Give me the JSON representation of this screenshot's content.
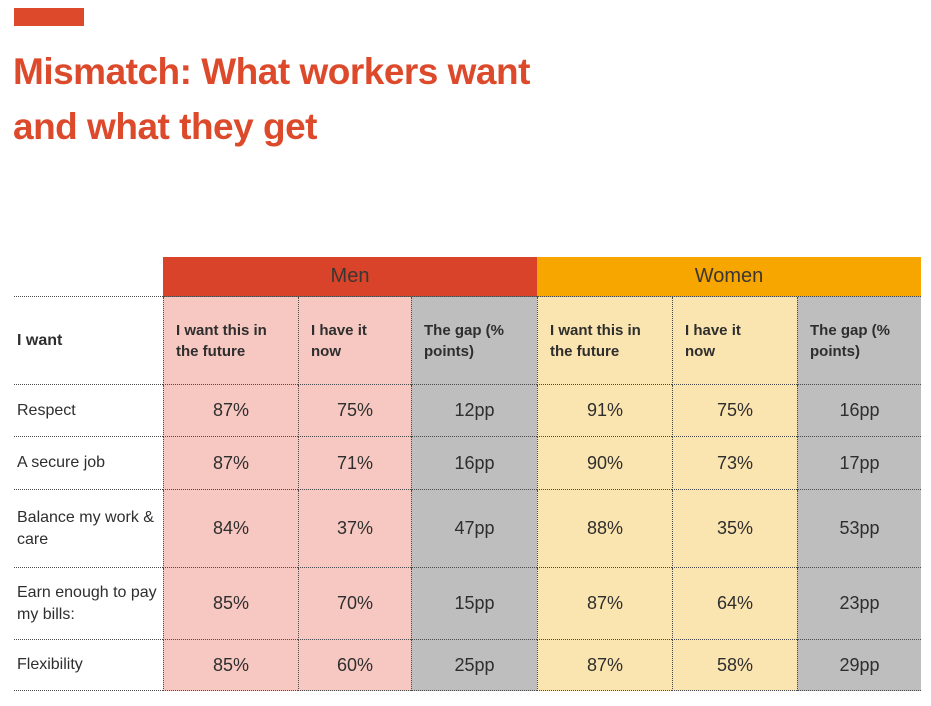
{
  "colors": {
    "accent_red": "#DC4A2B",
    "men_band": "#D8432A",
    "women_band": "#F7A600",
    "men_cell": "#F6C8C1",
    "women_cell": "#FAE4AF",
    "gap_cell": "#BFBEBE",
    "text_dark": "#2E2E2E"
  },
  "header": {
    "title_line1": "Mismatch: What workers want",
    "title_line2": "and what they get"
  },
  "chart_data": {
    "type": "table",
    "title": "Mismatch: What workers want and what they get",
    "row_label_header": "I want",
    "column_groups": [
      "Men",
      "Women"
    ],
    "columns": [
      "I want this in the future",
      "I have it now",
      "The gap (% points)"
    ],
    "rows": [
      {
        "label": "Respect",
        "men": {
          "want_future": "87%",
          "have_now": "75%",
          "gap": "12pp"
        },
        "women": {
          "want_future": "91%",
          "have_now": "75%",
          "gap": "16pp"
        }
      },
      {
        "label": "A secure job",
        "men": {
          "want_future": "87%",
          "have_now": "71%",
          "gap": "16pp"
        },
        "women": {
          "want_future": "90%",
          "have_now": "73%",
          "gap": "17pp"
        }
      },
      {
        "label": "Balance my work & care",
        "men": {
          "want_future": "84%",
          "have_now": "37%",
          "gap": "47pp"
        },
        "women": {
          "want_future": "88%",
          "have_now": "35%",
          "gap": "53pp"
        }
      },
      {
        "label": "Earn enough to pay my bills:",
        "men": {
          "want_future": "85%",
          "have_now": "70%",
          "gap": "15pp"
        },
        "women": {
          "want_future": "87%",
          "have_now": "64%",
          "gap": "23pp"
        }
      },
      {
        "label": "Flexibility",
        "men": {
          "want_future": "85%",
          "have_now": "60%",
          "gap": "25pp"
        },
        "women": {
          "want_future": "87%",
          "have_now": "58%",
          "gap": "29pp"
        }
      }
    ]
  }
}
